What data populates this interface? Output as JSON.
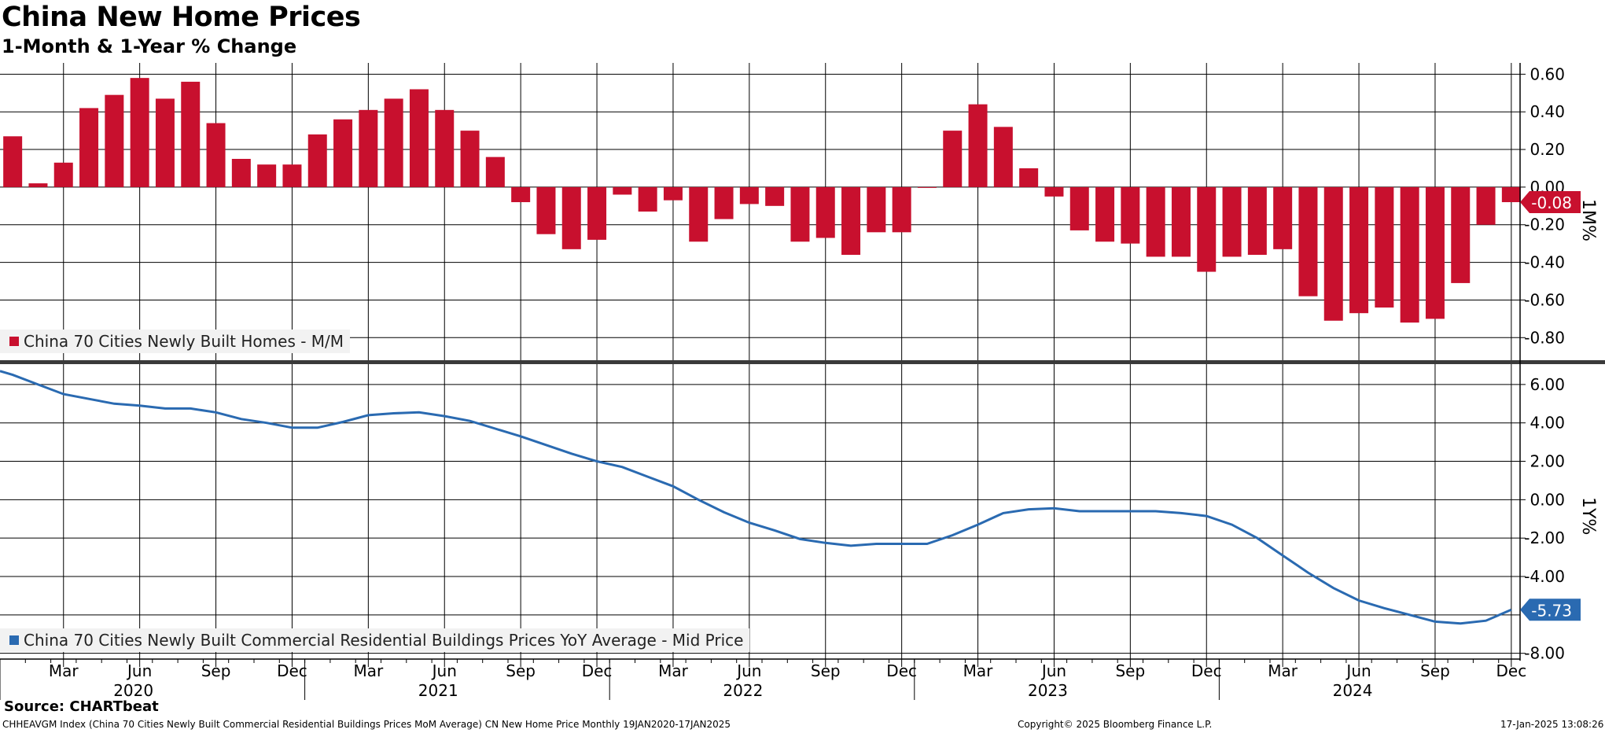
{
  "header": {
    "title": "China New Home Prices",
    "subtitle": "1-Month & 1-Year % Change"
  },
  "footer": {
    "source": "Source: CHARTbeat",
    "ticker": "CHHEAVGM Index (China 70 Cities Newly Built Commercial Residential Buildings Prices MoM Average) CN New Home Price  Monthly 19JAN2020-17JAN2025",
    "copyright": "Copyright© 2025 Bloomberg Finance L.P.",
    "timestamp": "17-Jan-2025 13:08:26"
  },
  "colors": {
    "bar": "#c8102e",
    "line": "#2a6ab1",
    "grid": "#000000"
  },
  "chart_data": [
    {
      "type": "bar",
      "panel": "top",
      "legend": "China 70 Cities Newly Built Homes - M/M",
      "axis_label": "1M%",
      "last_value_label": "-0.08",
      "ylim": [
        -0.92,
        0.66
      ],
      "yticks": [
        "0.60",
        "0.40",
        "0.20",
        "0.00",
        "-0.20",
        "-0.40",
        "-0.60",
        "-0.80"
      ],
      "ytick_values": [
        0.6,
        0.4,
        0.2,
        0.0,
        -0.2,
        -0.4,
        -0.6,
        -0.8
      ],
      "x": [
        "2020-01",
        "2020-02",
        "2020-03",
        "2020-04",
        "2020-05",
        "2020-06",
        "2020-07",
        "2020-08",
        "2020-09",
        "2020-10",
        "2020-11",
        "2020-12",
        "2021-01",
        "2021-02",
        "2021-03",
        "2021-04",
        "2021-05",
        "2021-06",
        "2021-07",
        "2021-08",
        "2021-09",
        "2021-10",
        "2021-11",
        "2021-12",
        "2022-01",
        "2022-02",
        "2022-03",
        "2022-04",
        "2022-05",
        "2022-06",
        "2022-07",
        "2022-08",
        "2022-09",
        "2022-10",
        "2022-11",
        "2022-12",
        "2023-01",
        "2023-02",
        "2023-03",
        "2023-04",
        "2023-05",
        "2023-06",
        "2023-07",
        "2023-08",
        "2023-09",
        "2023-10",
        "2023-11",
        "2023-12",
        "2024-01",
        "2024-02",
        "2024-03",
        "2024-04",
        "2024-05",
        "2024-06",
        "2024-07",
        "2024-08",
        "2024-09",
        "2024-10",
        "2024-11",
        "2024-12"
      ],
      "values": [
        0.27,
        0.02,
        0.13,
        0.42,
        0.49,
        0.58,
        0.47,
        0.56,
        0.34,
        0.15,
        0.12,
        0.12,
        0.28,
        0.36,
        0.41,
        0.47,
        0.52,
        0.41,
        0.3,
        0.16,
        -0.08,
        -0.25,
        -0.33,
        -0.28,
        -0.04,
        -0.13,
        -0.07,
        -0.29,
        -0.17,
        -0.09,
        -0.1,
        -0.29,
        -0.27,
        -0.36,
        -0.24,
        -0.24,
        0.0,
        0.3,
        0.44,
        0.32,
        0.1,
        -0.05,
        -0.23,
        -0.29,
        -0.3,
        -0.37,
        -0.37,
        -0.45,
        -0.37,
        -0.36,
        -0.33,
        -0.58,
        -0.71,
        -0.67,
        -0.64,
        -0.72,
        -0.7,
        -0.51,
        -0.2,
        -0.08
      ]
    },
    {
      "type": "line",
      "panel": "bottom",
      "legend": "China 70 Cities Newly Built Commercial Residential Buildings Prices YoY Average - Mid Price",
      "axis_label": "1Y%",
      "last_value_label": "-5.73",
      "ylim": [
        -8.3,
        7.1
      ],
      "yticks": [
        "6.00",
        "4.00",
        "2.00",
        "0.00",
        "-2.00",
        "-4.00",
        "-8.00"
      ],
      "ytick_values": [
        6,
        4,
        2,
        0,
        -2,
        -4,
        -8
      ],
      "x": [
        "2020-01",
        "2020-02",
        "2020-03",
        "2020-04",
        "2020-05",
        "2020-06",
        "2020-07",
        "2020-08",
        "2020-09",
        "2020-10",
        "2020-11",
        "2020-12",
        "2021-01",
        "2021-02",
        "2021-03",
        "2021-04",
        "2021-05",
        "2021-06",
        "2021-07",
        "2021-08",
        "2021-09",
        "2021-10",
        "2021-11",
        "2021-12",
        "2022-01",
        "2022-02",
        "2022-03",
        "2022-04",
        "2022-05",
        "2022-06",
        "2022-07",
        "2022-08",
        "2022-09",
        "2022-10",
        "2022-11",
        "2022-12",
        "2023-01",
        "2023-02",
        "2023-03",
        "2023-04",
        "2023-05",
        "2023-06",
        "2023-07",
        "2023-08",
        "2023-09",
        "2023-10",
        "2023-11",
        "2023-12",
        "2024-01",
        "2024-02",
        "2024-03",
        "2024-04",
        "2024-05",
        "2024-06",
        "2024-07",
        "2024-08",
        "2024-09",
        "2024-10",
        "2024-11",
        "2024-12"
      ],
      "values": [
        6.5,
        6.0,
        5.5,
        5.25,
        5.0,
        4.9,
        4.75,
        4.75,
        4.55,
        4.2,
        4.0,
        3.75,
        3.75,
        4.05,
        4.4,
        4.5,
        4.55,
        4.35,
        4.1,
        3.7,
        3.3,
        2.85,
        2.4,
        2.0,
        1.7,
        1.2,
        0.7,
        0.0,
        -0.65,
        -1.2,
        -1.6,
        -2.05,
        -2.25,
        -2.4,
        -2.3,
        -2.3,
        -2.3,
        -1.85,
        -1.3,
        -0.7,
        -0.5,
        -0.45,
        -0.6,
        -0.6,
        -0.6,
        -0.6,
        -0.7,
        -0.85,
        -1.3,
        -2.0,
        -2.9,
        -3.8,
        -4.6,
        -5.25,
        -5.65,
        -6.0,
        -6.35,
        -6.45,
        -6.3,
        -5.73
      ]
    }
  ],
  "x_axis": {
    "month_labels": [
      "Mar",
      "Jun",
      "Sep",
      "Dec",
      "Mar",
      "Jun",
      "Sep",
      "Dec",
      "Mar",
      "Jun",
      "Sep",
      "Dec",
      "Mar",
      "Jun",
      "Sep",
      "Dec",
      "Mar",
      "Jun",
      "Sep",
      "Dec"
    ],
    "month_label_index": [
      2,
      5,
      8,
      11,
      14,
      17,
      20,
      23,
      26,
      29,
      32,
      35,
      38,
      41,
      44,
      47,
      50,
      53,
      56,
      59
    ],
    "year_labels": [
      "2020",
      "2021",
      "2022",
      "2023",
      "2024"
    ],
    "year_label_index": [
      5,
      17,
      29,
      41,
      53
    ]
  }
}
